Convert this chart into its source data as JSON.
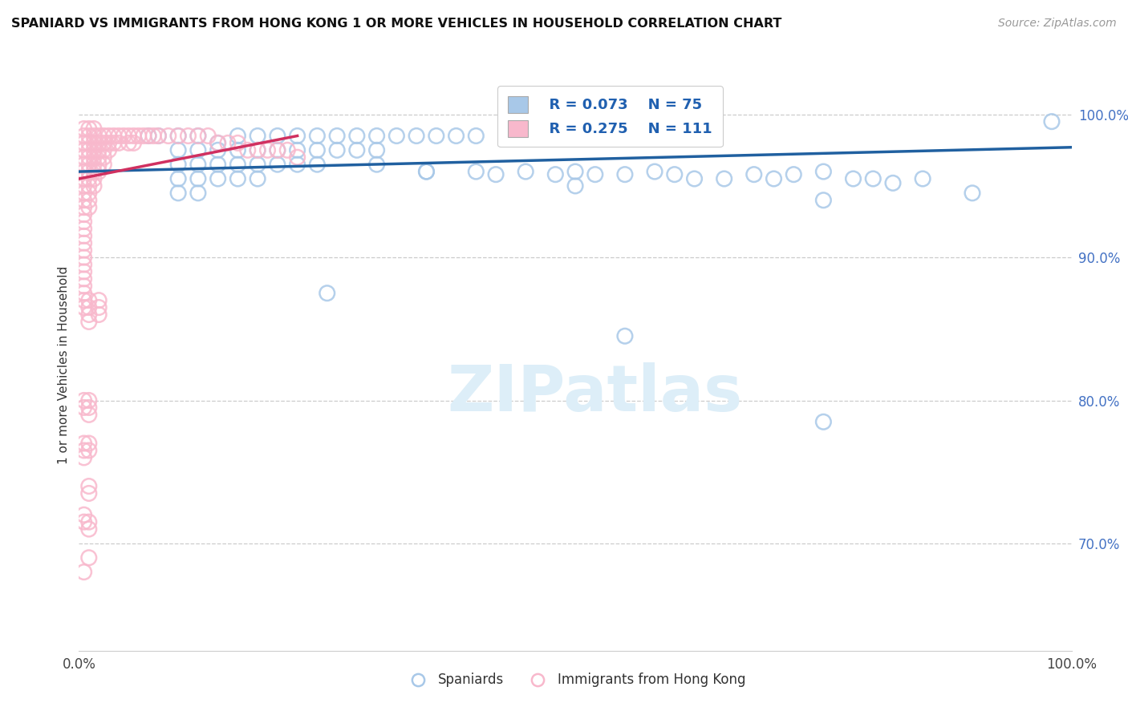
{
  "title": "SPANIARD VS IMMIGRANTS FROM HONG KONG 1 OR MORE VEHICLES IN HOUSEHOLD CORRELATION CHART",
  "source": "Source: ZipAtlas.com",
  "ylabel": "1 or more Vehicles in Household",
  "xmin": 0.0,
  "xmax": 1.0,
  "ymin": 0.625,
  "ymax": 1.025,
  "blue_color": "#a8c8e8",
  "blue_edge_color": "#a8c8e8",
  "pink_color": "#f8b8cc",
  "pink_edge_color": "#f8b8cc",
  "blue_line_color": "#2060a0",
  "pink_line_color": "#d03060",
  "blue_scatter": [
    [
      0.07,
      0.985
    ],
    [
      0.08,
      0.985
    ],
    [
      0.1,
      0.985
    ],
    [
      0.12,
      0.985
    ],
    [
      0.14,
      0.98
    ],
    [
      0.16,
      0.985
    ],
    [
      0.18,
      0.985
    ],
    [
      0.2,
      0.985
    ],
    [
      0.22,
      0.985
    ],
    [
      0.24,
      0.985
    ],
    [
      0.26,
      0.985
    ],
    [
      0.28,
      0.985
    ],
    [
      0.3,
      0.985
    ],
    [
      0.32,
      0.985
    ],
    [
      0.34,
      0.985
    ],
    [
      0.36,
      0.985
    ],
    [
      0.38,
      0.985
    ],
    [
      0.4,
      0.985
    ],
    [
      0.1,
      0.975
    ],
    [
      0.12,
      0.975
    ],
    [
      0.14,
      0.975
    ],
    [
      0.16,
      0.975
    ],
    [
      0.18,
      0.975
    ],
    [
      0.2,
      0.975
    ],
    [
      0.22,
      0.975
    ],
    [
      0.24,
      0.975
    ],
    [
      0.26,
      0.975
    ],
    [
      0.28,
      0.975
    ],
    [
      0.3,
      0.975
    ],
    [
      0.1,
      0.965
    ],
    [
      0.12,
      0.965
    ],
    [
      0.14,
      0.965
    ],
    [
      0.16,
      0.965
    ],
    [
      0.18,
      0.965
    ],
    [
      0.2,
      0.965
    ],
    [
      0.22,
      0.965
    ],
    [
      0.24,
      0.965
    ],
    [
      0.1,
      0.955
    ],
    [
      0.12,
      0.955
    ],
    [
      0.14,
      0.955
    ],
    [
      0.16,
      0.955
    ],
    [
      0.18,
      0.955
    ],
    [
      0.1,
      0.945
    ],
    [
      0.12,
      0.945
    ],
    [
      0.3,
      0.965
    ],
    [
      0.35,
      0.96
    ],
    [
      0.4,
      0.96
    ],
    [
      0.42,
      0.958
    ],
    [
      0.45,
      0.96
    ],
    [
      0.48,
      0.958
    ],
    [
      0.5,
      0.96
    ],
    [
      0.52,
      0.958
    ],
    [
      0.55,
      0.958
    ],
    [
      0.58,
      0.96
    ],
    [
      0.6,
      0.958
    ],
    [
      0.62,
      0.955
    ],
    [
      0.65,
      0.955
    ],
    [
      0.68,
      0.958
    ],
    [
      0.7,
      0.955
    ],
    [
      0.72,
      0.958
    ],
    [
      0.75,
      0.96
    ],
    [
      0.78,
      0.955
    ],
    [
      0.8,
      0.955
    ],
    [
      0.82,
      0.952
    ],
    [
      0.85,
      0.955
    ],
    [
      0.9,
      0.945
    ],
    [
      0.25,
      0.875
    ],
    [
      0.35,
      0.96
    ],
    [
      0.5,
      0.95
    ],
    [
      0.55,
      0.845
    ],
    [
      0.75,
      0.94
    ],
    [
      0.75,
      0.785
    ],
    [
      0.98,
      0.995
    ]
  ],
  "pink_scatter": [
    [
      0.005,
      0.99
    ],
    [
      0.005,
      0.985
    ],
    [
      0.005,
      0.98
    ],
    [
      0.005,
      0.975
    ],
    [
      0.005,
      0.97
    ],
    [
      0.005,
      0.965
    ],
    [
      0.005,
      0.96
    ],
    [
      0.005,
      0.955
    ],
    [
      0.005,
      0.95
    ],
    [
      0.005,
      0.945
    ],
    [
      0.005,
      0.94
    ],
    [
      0.005,
      0.935
    ],
    [
      0.005,
      0.93
    ],
    [
      0.005,
      0.925
    ],
    [
      0.005,
      0.92
    ],
    [
      0.005,
      0.915
    ],
    [
      0.005,
      0.91
    ],
    [
      0.005,
      0.905
    ],
    [
      0.005,
      0.9
    ],
    [
      0.005,
      0.895
    ],
    [
      0.005,
      0.89
    ],
    [
      0.005,
      0.885
    ],
    [
      0.005,
      0.88
    ],
    [
      0.005,
      0.875
    ],
    [
      0.005,
      0.87
    ],
    [
      0.005,
      0.865
    ],
    [
      0.005,
      0.8
    ],
    [
      0.005,
      0.795
    ],
    [
      0.005,
      0.77
    ],
    [
      0.005,
      0.765
    ],
    [
      0.005,
      0.76
    ],
    [
      0.005,
      0.72
    ],
    [
      0.005,
      0.715
    ],
    [
      0.005,
      0.68
    ],
    [
      0.01,
      0.99
    ],
    [
      0.01,
      0.985
    ],
    [
      0.01,
      0.98
    ],
    [
      0.01,
      0.975
    ],
    [
      0.01,
      0.97
    ],
    [
      0.01,
      0.965
    ],
    [
      0.01,
      0.96
    ],
    [
      0.01,
      0.955
    ],
    [
      0.01,
      0.95
    ],
    [
      0.01,
      0.945
    ],
    [
      0.01,
      0.94
    ],
    [
      0.01,
      0.935
    ],
    [
      0.01,
      0.87
    ],
    [
      0.01,
      0.865
    ],
    [
      0.01,
      0.86
    ],
    [
      0.01,
      0.855
    ],
    [
      0.01,
      0.8
    ],
    [
      0.01,
      0.795
    ],
    [
      0.01,
      0.79
    ],
    [
      0.01,
      0.77
    ],
    [
      0.01,
      0.765
    ],
    [
      0.01,
      0.74
    ],
    [
      0.01,
      0.735
    ],
    [
      0.01,
      0.715
    ],
    [
      0.01,
      0.71
    ],
    [
      0.01,
      0.69
    ],
    [
      0.015,
      0.99
    ],
    [
      0.015,
      0.985
    ],
    [
      0.015,
      0.98
    ],
    [
      0.015,
      0.975
    ],
    [
      0.015,
      0.97
    ],
    [
      0.015,
      0.965
    ],
    [
      0.015,
      0.96
    ],
    [
      0.015,
      0.955
    ],
    [
      0.015,
      0.95
    ],
    [
      0.02,
      0.985
    ],
    [
      0.02,
      0.98
    ],
    [
      0.02,
      0.975
    ],
    [
      0.02,
      0.97
    ],
    [
      0.02,
      0.965
    ],
    [
      0.02,
      0.96
    ],
    [
      0.02,
      0.87
    ],
    [
      0.02,
      0.865
    ],
    [
      0.02,
      0.86
    ],
    [
      0.025,
      0.985
    ],
    [
      0.025,
      0.98
    ],
    [
      0.025,
      0.975
    ],
    [
      0.025,
      0.97
    ],
    [
      0.025,
      0.965
    ],
    [
      0.03,
      0.985
    ],
    [
      0.03,
      0.98
    ],
    [
      0.03,
      0.975
    ],
    [
      0.035,
      0.985
    ],
    [
      0.035,
      0.98
    ],
    [
      0.04,
      0.985
    ],
    [
      0.04,
      0.98
    ],
    [
      0.045,
      0.985
    ],
    [
      0.05,
      0.985
    ],
    [
      0.05,
      0.98
    ],
    [
      0.055,
      0.985
    ],
    [
      0.055,
      0.98
    ],
    [
      0.06,
      0.985
    ],
    [
      0.065,
      0.985
    ],
    [
      0.07,
      0.985
    ],
    [
      0.075,
      0.985
    ],
    [
      0.08,
      0.985
    ],
    [
      0.09,
      0.985
    ],
    [
      0.1,
      0.985
    ],
    [
      0.11,
      0.985
    ],
    [
      0.12,
      0.985
    ],
    [
      0.13,
      0.985
    ],
    [
      0.14,
      0.98
    ],
    [
      0.15,
      0.98
    ],
    [
      0.16,
      0.98
    ],
    [
      0.17,
      0.975
    ],
    [
      0.18,
      0.975
    ],
    [
      0.19,
      0.975
    ],
    [
      0.2,
      0.975
    ],
    [
      0.21,
      0.975
    ],
    [
      0.22,
      0.97
    ]
  ],
  "blue_line_x": [
    0.0,
    1.0
  ],
  "blue_line_y": [
    0.96,
    0.977
  ],
  "pink_line_x": [
    0.0,
    0.22
  ],
  "pink_line_y": [
    0.955,
    0.985
  ]
}
